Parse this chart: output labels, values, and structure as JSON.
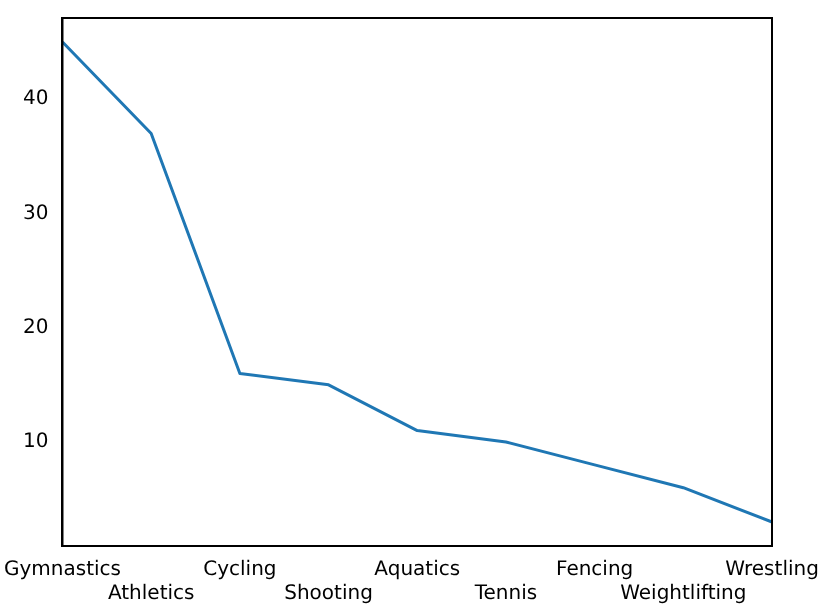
{
  "chart_data": {
    "type": "line",
    "categories": [
      "Gymnastics",
      "Athletics",
      "Cycling",
      "Shooting",
      "Aquatics",
      "Tennis",
      "Fencing",
      "Weightlifting",
      "Wrestling"
    ],
    "series": [
      {
        "color": "#1f77b4",
        "values": [
          45,
          37,
          16,
          15,
          11,
          10,
          8,
          6,
          3
        ]
      }
    ],
    "ylim": [
      0.9,
      47.1
    ],
    "yticks": [
      10,
      20,
      30,
      40
    ],
    "grid": false,
    "legend": false,
    "marker": "none"
  }
}
